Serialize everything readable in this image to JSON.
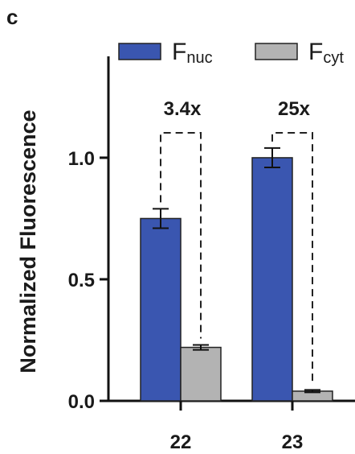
{
  "chart_data": {
    "type": "bar",
    "panel_label": "c",
    "categories": [
      "22",
      "23"
    ],
    "series": [
      {
        "name": "F",
        "subscript": "nuc",
        "color": "#3a56b0",
        "values": [
          0.75,
          1.0
        ],
        "errors": [
          0.04,
          0.04
        ]
      },
      {
        "name": "F",
        "subscript": "cyt",
        "color": "#b3b3b3",
        "values": [
          0.22,
          0.04
        ],
        "errors": [
          0.01,
          0.005
        ]
      }
    ],
    "annotations": [
      "3.4x",
      "25x"
    ],
    "ylabel": "Normalized Fluorescence",
    "xlabel": "",
    "ylim": [
      0,
      1.45
    ],
    "yticks": [
      "0.0",
      "0.5",
      "1.0"
    ],
    "legend_position": "top"
  }
}
